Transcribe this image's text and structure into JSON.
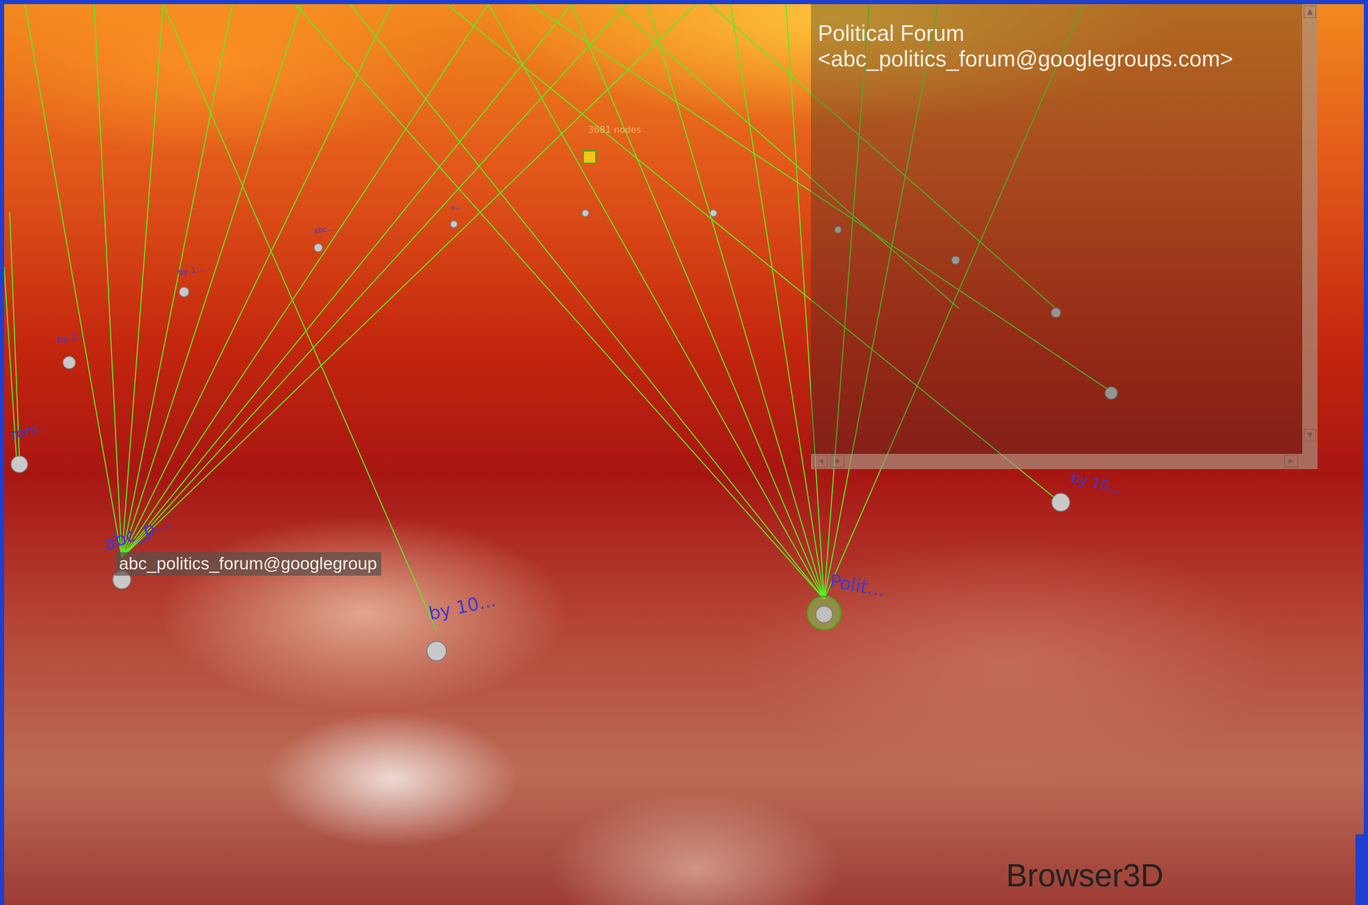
{
  "app": {
    "name": "Browser3D"
  },
  "panel": {
    "title_line1": "Political Forum",
    "title_line2": "<abc_politics_forum@googlegroups.com>"
  },
  "tooltip": {
    "text": "abc_politics_forum@googlegroup"
  },
  "graph": {
    "center_label": "3681 nodes",
    "labels": {
      "left_hub": "abc_p...",
      "right_hub": "Polit...",
      "by_node_a": "by 10...",
      "by_node_b": "by 10...",
      "left_edge": "rom -",
      "small_1": "by 1...",
      "small_2": "by 1...",
      "small_3": "abc...",
      "small_4": "e..."
    }
  },
  "colors": {
    "edge": "#55ee22",
    "label": "#3a3ad8",
    "frame": "#1f3fd0"
  }
}
